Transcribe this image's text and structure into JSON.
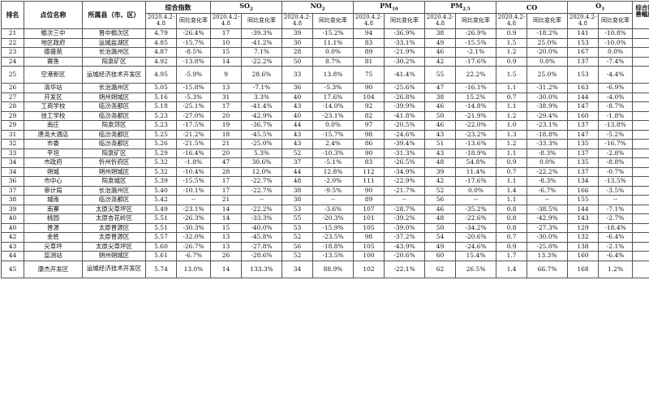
{
  "header": {
    "rank": "排名",
    "site": "点位名称",
    "county": "所属县（市、区）",
    "composite": "综合指数",
    "so2": {
      "pre": "SO",
      "sub": "2"
    },
    "no2": {
      "pre": "NO",
      "sub": "2"
    },
    "pm10": {
      "pre": "PM",
      "sub": "10"
    },
    "pm25": {
      "pre": "PM",
      "sub": "2.5"
    },
    "co": "CO",
    "o3": {
      "pre": "O",
      "sub": "3"
    },
    "rank_change": "综合指数同比改善幅度由大到小排名",
    "period": "2020.4.2-4.8",
    "yoy": "同比变化率"
  },
  "rows": [
    {
      "rank": "21",
      "site": "榆次三中",
      "county": "晋中榆次区",
      "ci": "4.79",
      "ci_y": "-26.4%",
      "so2": "17",
      "so2_y": "-39.3%",
      "no2": "39",
      "no2_y": "-15.2%",
      "pm10": "94",
      "pm10_y": "-36.9%",
      "pm25": "38",
      "pm25_y": "-26.9%",
      "co": "0.9",
      "co_y": "-18.2%",
      "o3": "141",
      "o3_y": "-10.8%",
      "r": "7"
    },
    {
      "rank": "22",
      "site": "地区政府",
      "county": "运城盐湖区",
      "ci": "4.85",
      "ci_y": "-15.7%",
      "so2": "10",
      "so2_y": "-41.2%",
      "no2": "30",
      "no2_y": "11.1%",
      "pm10": "83",
      "pm10_y": "-33.1%",
      "pm25": "49",
      "pm25_y": "-15.5%",
      "co": "1.5",
      "co_y": "25.0%",
      "o3": "153",
      "o3_y": "-10.0%",
      "r": "27"
    },
    {
      "rank": "23",
      "site": "德盛苑",
      "county": "长治潞州区",
      "ci": "4.87",
      "ci_y": "-8.5%",
      "so2": "15",
      "so2_y": "7.1%",
      "no2": "28",
      "no2_y": "0.0%",
      "pm10": "89",
      "pm10_y": "-21.9%",
      "pm25": "46",
      "pm25_y": "-2.1%",
      "co": "1.2",
      "co_y": "-20.0%",
      "o3": "167",
      "o3_y": "0.0%",
      "r": "42"
    },
    {
      "rank": "24",
      "site": "赛鱼",
      "county": "阳泉矿区",
      "ci": "4.92",
      "ci_y": "-13.8%",
      "so2": "14",
      "so2_y": "-22.2%",
      "no2": "50",
      "no2_y": "8.7%",
      "pm10": "81",
      "pm10_y": "-30.2%",
      "pm25": "42",
      "pm25_y": "-17.6%",
      "co": "0.9",
      "co_y": "0.0%",
      "o3": "137",
      "o3_y": "-7.4%",
      "r": "31"
    },
    {
      "rank": "25",
      "site": "空港新区",
      "county": "运城经济技术开发区",
      "ci": "4.95",
      "ci_y": "-5.9%",
      "so2": "9",
      "so2_y": "28.6%",
      "no2": "33",
      "no2_y": "13.8%",
      "pm10": "75",
      "pm10_y": "-41.4%",
      "pm25": "55",
      "pm25_y": "22.2%",
      "co": "1.5",
      "co_y": "25.0%",
      "o3": "153",
      "o3_y": "-4.4%",
      "r": "45",
      "tall": true
    },
    {
      "rank": "26",
      "site": "清华站",
      "county": "长治潞州区",
      "ci": "5.05",
      "ci_y": "-15.8%",
      "so2": "13",
      "so2_y": "-7.1%",
      "no2": "36",
      "no2_y": "-5.3%",
      "pm10": "90",
      "pm10_y": "-25.6%",
      "pm25": "47",
      "pm25_y": "-16.1%",
      "co": "1.1",
      "co_y": "-31.2%",
      "o3": "163",
      "o3_y": "-6.9%",
      "r": "26"
    },
    {
      "rank": "27",
      "site": "开发区",
      "county": "朔州朔城区",
      "ci": "5.16",
      "ci_y": "-5.3%",
      "so2": "31",
      "so2_y": "3.3%",
      "no2": "40",
      "no2_y": "17.6%",
      "pm10": "104",
      "pm10_y": "-26.8%",
      "pm25": "38",
      "pm25_y": "15.2%",
      "co": "0.7",
      "co_y": "-30.0%",
      "o3": "144",
      "o3_y": "-4.0%",
      "r": "46"
    },
    {
      "rank": "28",
      "site": "工商学校",
      "county": "临汾尧都区",
      "ci": "5.18",
      "ci_y": "-25.1%",
      "so2": "17",
      "so2_y": "-41.4%",
      "no2": "43",
      "no2_y": "-14.0%",
      "pm10": "92",
      "pm10_y": "-39.9%",
      "pm25": "46",
      "pm25_y": "-14.8%",
      "co": "1.1",
      "co_y": "-38.9%",
      "o3": "147",
      "o3_y": "-8.7%",
      "r": "11"
    },
    {
      "rank": "29",
      "site": "技工学校",
      "county": "临汾尧都区",
      "ci": "5.23",
      "ci_y": "-27.0%",
      "so2": "20",
      "so2_y": "-42.9%",
      "no2": "40",
      "no2_y": "-23.1%",
      "pm10": "82",
      "pm10_y": "-41.8%",
      "pm25": "50",
      "pm25_y": "-21.9%",
      "co": "1.2",
      "co_y": "-29.4%",
      "o3": "160",
      "o3_y": "-1.8%",
      "r": "5"
    },
    {
      "rank": "29",
      "site": "南庄",
      "county": "阳泉郊区",
      "ci": "5.23",
      "ci_y": "-17.5%",
      "so2": "19",
      "so2_y": "-36.7%",
      "no2": "44",
      "no2_y": "0.0%",
      "pm10": "97",
      "pm10_y": "-20.5%",
      "pm25": "46",
      "pm25_y": "-22.0%",
      "co": "1.0",
      "co_y": "-23.1%",
      "o3": "137",
      "o3_y": "-13.8%",
      "r": "20"
    },
    {
      "rank": "31",
      "site": "唐尧大酒店",
      "county": "临汾尧都区",
      "ci": "5.25",
      "ci_y": "-21.2%",
      "so2": "18",
      "so2_y": "-45.5%",
      "no2": "43",
      "no2_y": "-15.7%",
      "pm10": "98",
      "pm10_y": "-24.6%",
      "pm25": "43",
      "pm25_y": "-23.2%",
      "co": "1.3",
      "co_y": "-18.8%",
      "o3": "147",
      "o3_y": "-5.2%",
      "r": "16"
    },
    {
      "rank": "32",
      "site": "市委",
      "county": "临汾尧都区",
      "ci": "5.26",
      "ci_y": "-21.5%",
      "so2": "21",
      "so2_y": "-25.0%",
      "no2": "43",
      "no2_y": "2.4%",
      "pm10": "86",
      "pm10_y": "-39.4%",
      "pm25": "51",
      "pm25_y": "-13.6%",
      "co": "1.2",
      "co_y": "-33.3%",
      "o3": "135",
      "o3_y": "-16.7%",
      "r": "14"
    },
    {
      "rank": "33",
      "site": "平坦",
      "county": "阳泉矿区",
      "ci": "5.29",
      "ci_y": "-16.4%",
      "so2": "20",
      "so2_y": "5.3%",
      "no2": "52",
      "no2_y": "-10.3%",
      "pm10": "90",
      "pm10_y": "-31.3%",
      "pm25": "43",
      "pm25_y": "-18.9%",
      "co": "1.1",
      "co_y": "-8.3%",
      "o3": "137",
      "o3_y": "-2.8%",
      "r": "24"
    },
    {
      "rank": "34",
      "site": "市政府",
      "county": "忻州忻府区",
      "ci": "5.32",
      "ci_y": "-1.8%",
      "so2": "47",
      "so2_y": "30.6%",
      "no2": "37",
      "no2_y": "-5.1%",
      "pm10": "83",
      "pm10_y": "-26.5%",
      "pm25": "48",
      "pm25_y": "54.8%",
      "co": "0.9",
      "co_y": "0.0%",
      "o3": "135",
      "o3_y": "-8.8%",
      "r": "51"
    },
    {
      "rank": "34",
      "site": "朔城",
      "county": "朔州朔城区",
      "ci": "5.32",
      "ci_y": "-10.4%",
      "so2": "28",
      "so2_y": "12.0%",
      "no2": "44",
      "no2_y": "12.8%",
      "pm10": "112",
      "pm10_y": "-34.9%",
      "pm25": "39",
      "pm25_y": "11.4%",
      "co": "0.7",
      "co_y": "-22.2%",
      "o3": "137",
      "o3_y": "-0.7%",
      "r": "40"
    },
    {
      "rank": "36",
      "site": "市中心",
      "county": "阳泉城区",
      "ci": "5.39",
      "ci_y": "-15.5%",
      "so2": "17",
      "so2_y": "-22.7%",
      "no2": "48",
      "no2_y": "-2.0%",
      "pm10": "111",
      "pm10_y": "-22.9%",
      "pm25": "42",
      "pm25_y": "-17.6%",
      "co": "1.1",
      "co_y": "-8.3%",
      "o3": "134",
      "o3_y": "-13.5%",
      "r": "28"
    },
    {
      "rank": "37",
      "site": "审计局",
      "county": "长治潞州区",
      "ci": "5.40",
      "ci_y": "-10.1%",
      "so2": "17",
      "so2_y": "-22.7%",
      "no2": "38",
      "no2_y": "-9.5%",
      "pm10": "90",
      "pm10_y": "-21.7%",
      "pm25": "52",
      "pm25_y": "0.0%",
      "co": "1.4",
      "co_y": "-6.7%",
      "o3": "166",
      "o3_y": "-3.5%",
      "r": "41"
    },
    {
      "rank": "38",
      "site": "城南",
      "county": "临汾尧都区",
      "ci": "5.42",
      "ci_y": "--",
      "so2": "21",
      "so2_y": "--",
      "no2": "38",
      "no2_y": "--",
      "pm10": "89",
      "pm10_y": "--",
      "pm25": "56",
      "pm25_y": "--",
      "co": "1.1",
      "co_y": "--",
      "o3": "155",
      "o3_y": "--",
      "r": "--"
    },
    {
      "rank": "39",
      "site": "南寨",
      "county": "太原尖草坪区",
      "ci": "5.49",
      "ci_y": "-23.1%",
      "so2": "14",
      "so2_y": "-22.2%",
      "no2": "53",
      "no2_y": "-3.6%",
      "pm10": "107",
      "pm10_y": "-28.7%",
      "pm25": "46",
      "pm25_y": "-35.2%",
      "co": "0.8",
      "co_y": "-38.5%",
      "o3": "144",
      "o3_y": "-7.1%",
      "r": "12"
    },
    {
      "rank": "40",
      "site": "桃园",
      "county": "太原杏花岭区",
      "ci": "5.51",
      "ci_y": "-26.3%",
      "so2": "14",
      "so2_y": "-33.3%",
      "no2": "55",
      "no2_y": "-20.3%",
      "pm10": "101",
      "pm10_y": "-39.2%",
      "pm25": "48",
      "pm25_y": "-22.6%",
      "co": "0.8",
      "co_y": "-42.9%",
      "o3": "143",
      "o3_y": "-2.7%",
      "r": "9"
    },
    {
      "rank": "40",
      "site": "晋源",
      "county": "太原晋源区",
      "ci": "5.51",
      "ci_y": "-30.3%",
      "so2": "15",
      "so2_y": "-40.0%",
      "no2": "53",
      "no2_y": "-15.9%",
      "pm10": "105",
      "pm10_y": "-39.0%",
      "pm25": "50",
      "pm25_y": "-34.2%",
      "co": "0.8",
      "co_y": "-27.3%",
      "o3": "129",
      "o3_y": "-18.4%",
      "r": "2"
    },
    {
      "rank": "42",
      "site": "金胜",
      "county": "太原晋源区",
      "ci": "5.57",
      "ci_y": "-32.0%",
      "so2": "13",
      "so2_y": "-45.8%",
      "no2": "52",
      "no2_y": "-23.5%",
      "pm10": "98",
      "pm10_y": "-37.2%",
      "pm25": "54",
      "pm25_y": "-20.6%",
      "co": "0.7",
      "co_y": "-30.0%",
      "o3": "132",
      "o3_y": "-6.4%",
      "r": "1"
    },
    {
      "rank": "43",
      "site": "尖草坪",
      "county": "太原尖草坪区",
      "ci": "5.60",
      "ci_y": "-26.7%",
      "so2": "13",
      "so2_y": "-27.8%",
      "no2": "56",
      "no2_y": "-18.8%",
      "pm10": "105",
      "pm10_y": "-43.9%",
      "pm25": "49",
      "pm25_y": "-24.6%",
      "co": "0.9",
      "co_y": "-25.0%",
      "o3": "138",
      "o3_y": "-2.1%",
      "r": "6"
    },
    {
      "rank": "44",
      "site": "监测站",
      "county": "朔州朔城区",
      "ci": "5.61",
      "ci_y": "-6.7%",
      "so2": "26",
      "so2_y": "-28.6%",
      "no2": "52",
      "no2_y": "-13.5%",
      "pm10": "100",
      "pm10_y": "-20.6%",
      "pm25": "60",
      "pm25_y": "15.4%",
      "co": "1.7",
      "co_y": "13.3%",
      "o3": "160",
      "o3_y": "-6.4%",
      "r": "43"
    },
    {
      "rank": "45",
      "site": "康杰开发区",
      "county": "运城经济技术开发区",
      "ci": "5.74",
      "ci_y": "13.0%",
      "so2": "14",
      "so2_y": "133.3%",
      "no2": "34",
      "no2_y": "88.9%",
      "pm10": "102",
      "pm10_y": "-22.1%",
      "pm25": "62",
      "pm25_y": "26.5%",
      "co": "1.4",
      "co_y": "66.7%",
      "o3": "168",
      "o3_y": "1.2%",
      "r": "53",
      "tall": true
    }
  ]
}
